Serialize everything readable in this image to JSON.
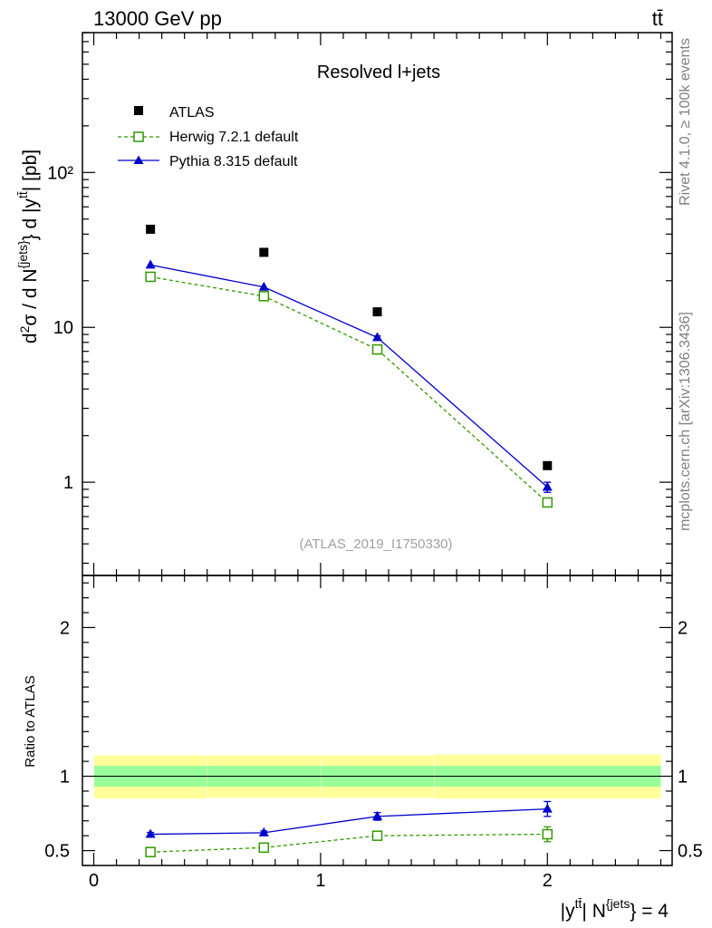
{
  "header": {
    "left": "13000 GeV pp",
    "right": "tt̄"
  },
  "side_labels": {
    "rivet": "Rivet 4.1.0, ≥ 100k events",
    "site": "mcplots.cern.ch [arXiv:1306.3436]"
  },
  "chart_data": [
    {
      "type": "scatter",
      "panel": "main",
      "title": "Resolved l+jets",
      "ylabel": "d²σ / d N^{jets} d |y^{tt̄}| [pb]",
      "yscale": "log",
      "ylim": [
        0.25,
        800
      ],
      "xlim": [
        -0.05,
        2.55
      ],
      "ytick_labels": [
        "1",
        "10",
        "10²"
      ],
      "reference": "(ATLAS_2019_I1750330)",
      "legend": [
        "ATLAS",
        "Herwig 7.2.1 default",
        "Pythia 8.315 default"
      ],
      "legend_position": "top-left",
      "x": [
        0.25,
        0.75,
        1.25,
        2.0
      ],
      "series": [
        {
          "name": "ATLAS",
          "values": [
            43,
            30.5,
            12.6,
            1.28
          ],
          "color": "#000000",
          "marker": "filled-square"
        },
        {
          "name": "Herwig 7.2.1 default",
          "values": [
            21.2,
            15.9,
            7.2,
            0.74
          ],
          "errors": [
            0.4,
            0.3,
            0.2,
            0.04
          ],
          "color": "#339900",
          "marker": "open-square",
          "line": "dashed"
        },
        {
          "name": "Pythia 8.315 default",
          "values": [
            25.3,
            18.2,
            8.6,
            0.93
          ],
          "errors": [
            0.4,
            0.3,
            0.2,
            0.07
          ],
          "color": "#0000cc",
          "marker": "filled-triangle",
          "line": "solid"
        }
      ]
    },
    {
      "type": "scatter",
      "panel": "ratio",
      "ylabel": "Ratio to ATLAS",
      "xlabel": "|y^{tt̄}| N^{jets} = 4",
      "ylim": [
        0.4,
        2.35
      ],
      "xlim": [
        -0.05,
        2.55
      ],
      "ytick_labels": [
        "0.5",
        "1",
        "2"
      ],
      "xtick_labels": [
        "0",
        "1",
        "2"
      ],
      "bands": {
        "bins": [
          0,
          0.5,
          1.0,
          1.5,
          2.5
        ],
        "stat_low": [
          0.93,
          0.93,
          0.93,
          0.93
        ],
        "stat_high": [
          1.07,
          1.07,
          1.07,
          1.07
        ],
        "total_low": [
          0.85,
          0.855,
          0.855,
          0.85
        ],
        "total_high": [
          1.14,
          1.14,
          1.14,
          1.145
        ],
        "inner_color": "#99ff99",
        "outer_color": "#ffff99"
      },
      "x": [
        0.25,
        0.75,
        1.25,
        2.0
      ],
      "series": [
        {
          "name": "Herwig 7.2.1 default",
          "values": [
            0.49,
            0.52,
            0.6,
            0.61
          ],
          "errors": [
            0.012,
            0.012,
            0.016,
            0.05
          ],
          "color": "#339900",
          "marker": "open-square",
          "line": "dashed"
        },
        {
          "name": "Pythia 8.315 default",
          "values": [
            0.61,
            0.62,
            0.73,
            0.78
          ],
          "errors": [
            0.012,
            0.012,
            0.026,
            0.05
          ],
          "color": "#0000cc",
          "marker": "filled-triangle",
          "line": "solid"
        }
      ]
    }
  ]
}
